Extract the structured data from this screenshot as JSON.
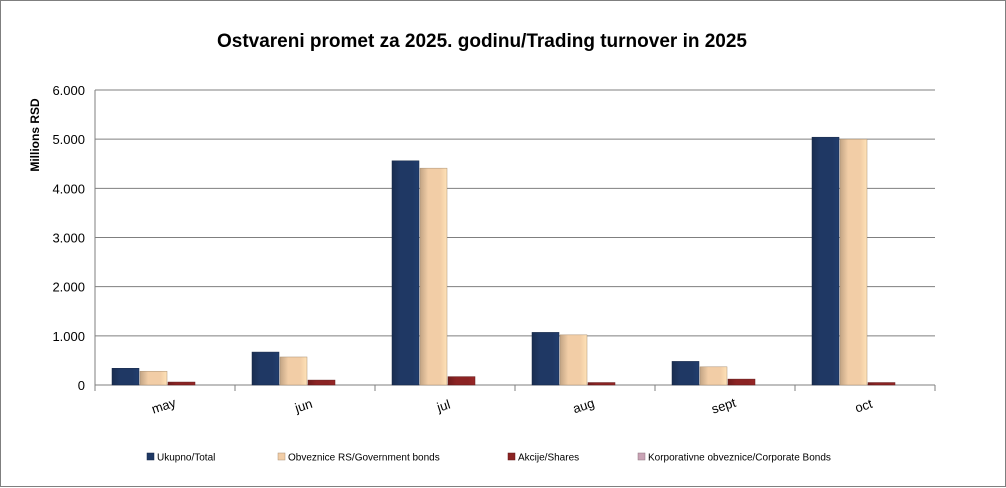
{
  "chart_data": {
    "type": "bar",
    "title": "Ostvareni promet za 2025. godinu/Trading turnover in 2025",
    "ylabel": "Millions RSD",
    "xlabel": "",
    "ylim": [
      0,
      6000
    ],
    "yticks": [
      0,
      1000,
      2000,
      3000,
      4000,
      5000,
      6000
    ],
    "ytick_labels": [
      "0",
      "1.000",
      "2.000",
      "3.000",
      "4.000",
      "5.000",
      "6.000"
    ],
    "grid": true,
    "legend_position": "bottom",
    "categories": [
      "may",
      "jun",
      "jul",
      "aug",
      "sept",
      "oct"
    ],
    "series": [
      {
        "name": "Ukupno/Total",
        "color": "#1f3864",
        "values": [
          340,
          670,
          4560,
          1070,
          480,
          5040
        ]
      },
      {
        "name": "Obveznice RS/Government bonds",
        "color": "#f2cda6",
        "values": [
          280,
          570,
          4410,
          1020,
          370,
          5000
        ]
      },
      {
        "name": "Akcije/Shares",
        "color": "#8b2323",
        "values": [
          60,
          100,
          170,
          50,
          120,
          50
        ]
      },
      {
        "name": "Korporativne obveznice/Corporate Bonds",
        "color": "#c9a3b5",
        "values": [
          0,
          0,
          0,
          0,
          0,
          0
        ]
      }
    ]
  }
}
